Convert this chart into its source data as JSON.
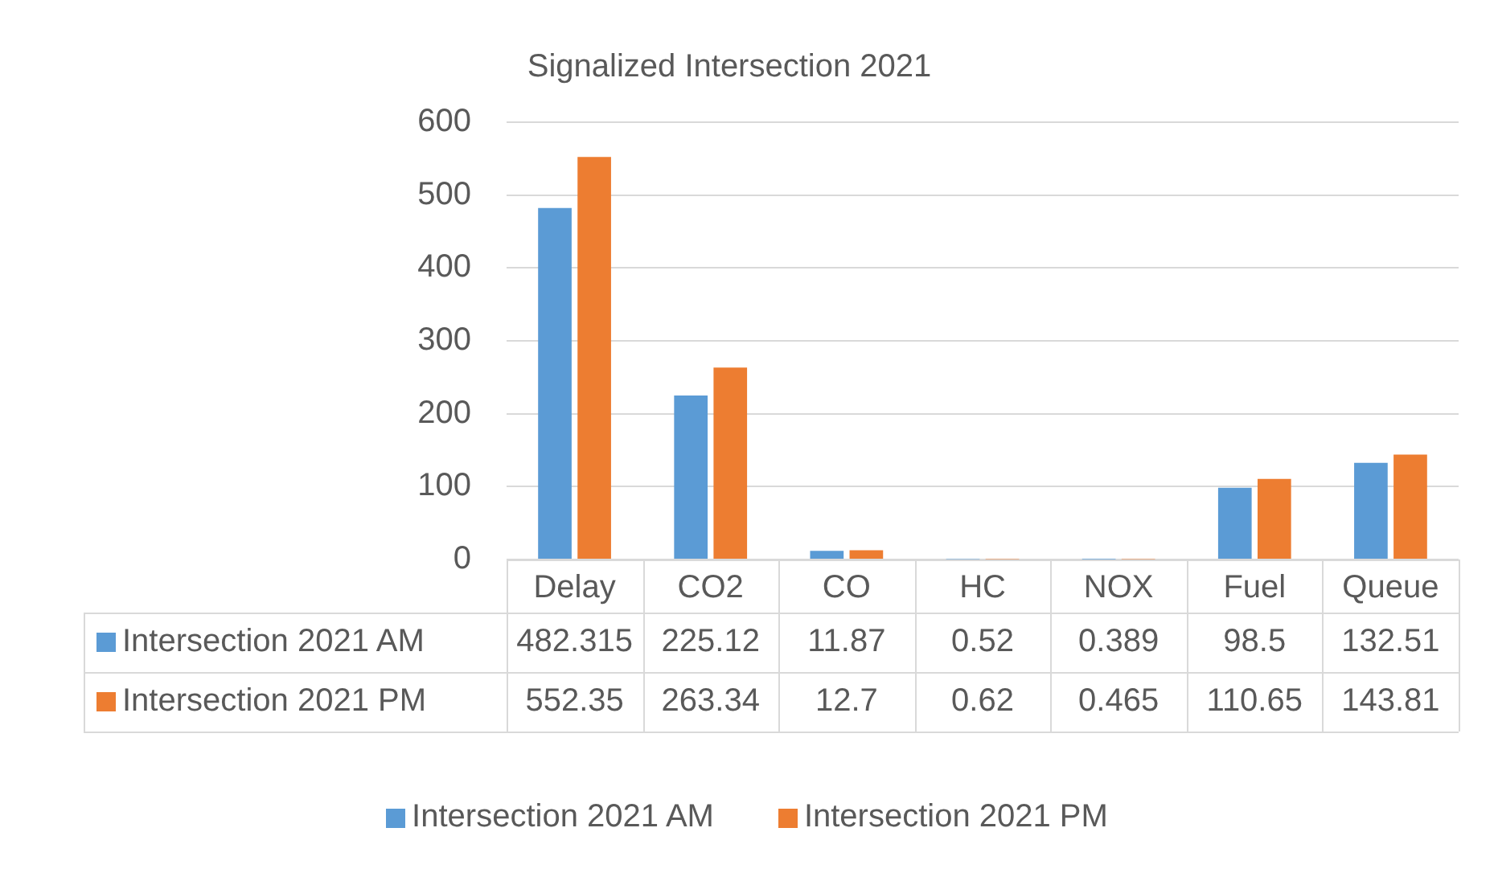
{
  "chart_data": {
    "type": "bar",
    "title": "Signalized Intersection 2021",
    "categories": [
      "Delay",
      "CO2",
      "CO",
      "HC",
      "NOX",
      "Fuel",
      "Queue"
    ],
    "series": [
      {
        "name": "Intersection 2021 AM",
        "color": "#5b9bd5",
        "values": [
          482.315,
          225.12,
          11.87,
          0.52,
          0.389,
          98.5,
          132.51
        ]
      },
      {
        "name": "Intersection 2021 PM",
        "color": "#ed7d31",
        "values": [
          552.35,
          263.34,
          12.7,
          0.62,
          0.465,
          110.65,
          143.81
        ]
      }
    ],
    "ylim": [
      0,
      600
    ],
    "yticks": [
      0,
      100,
      200,
      300,
      400,
      500,
      600
    ],
    "grid": "y",
    "legend": "bottom",
    "data_labels": true
  }
}
